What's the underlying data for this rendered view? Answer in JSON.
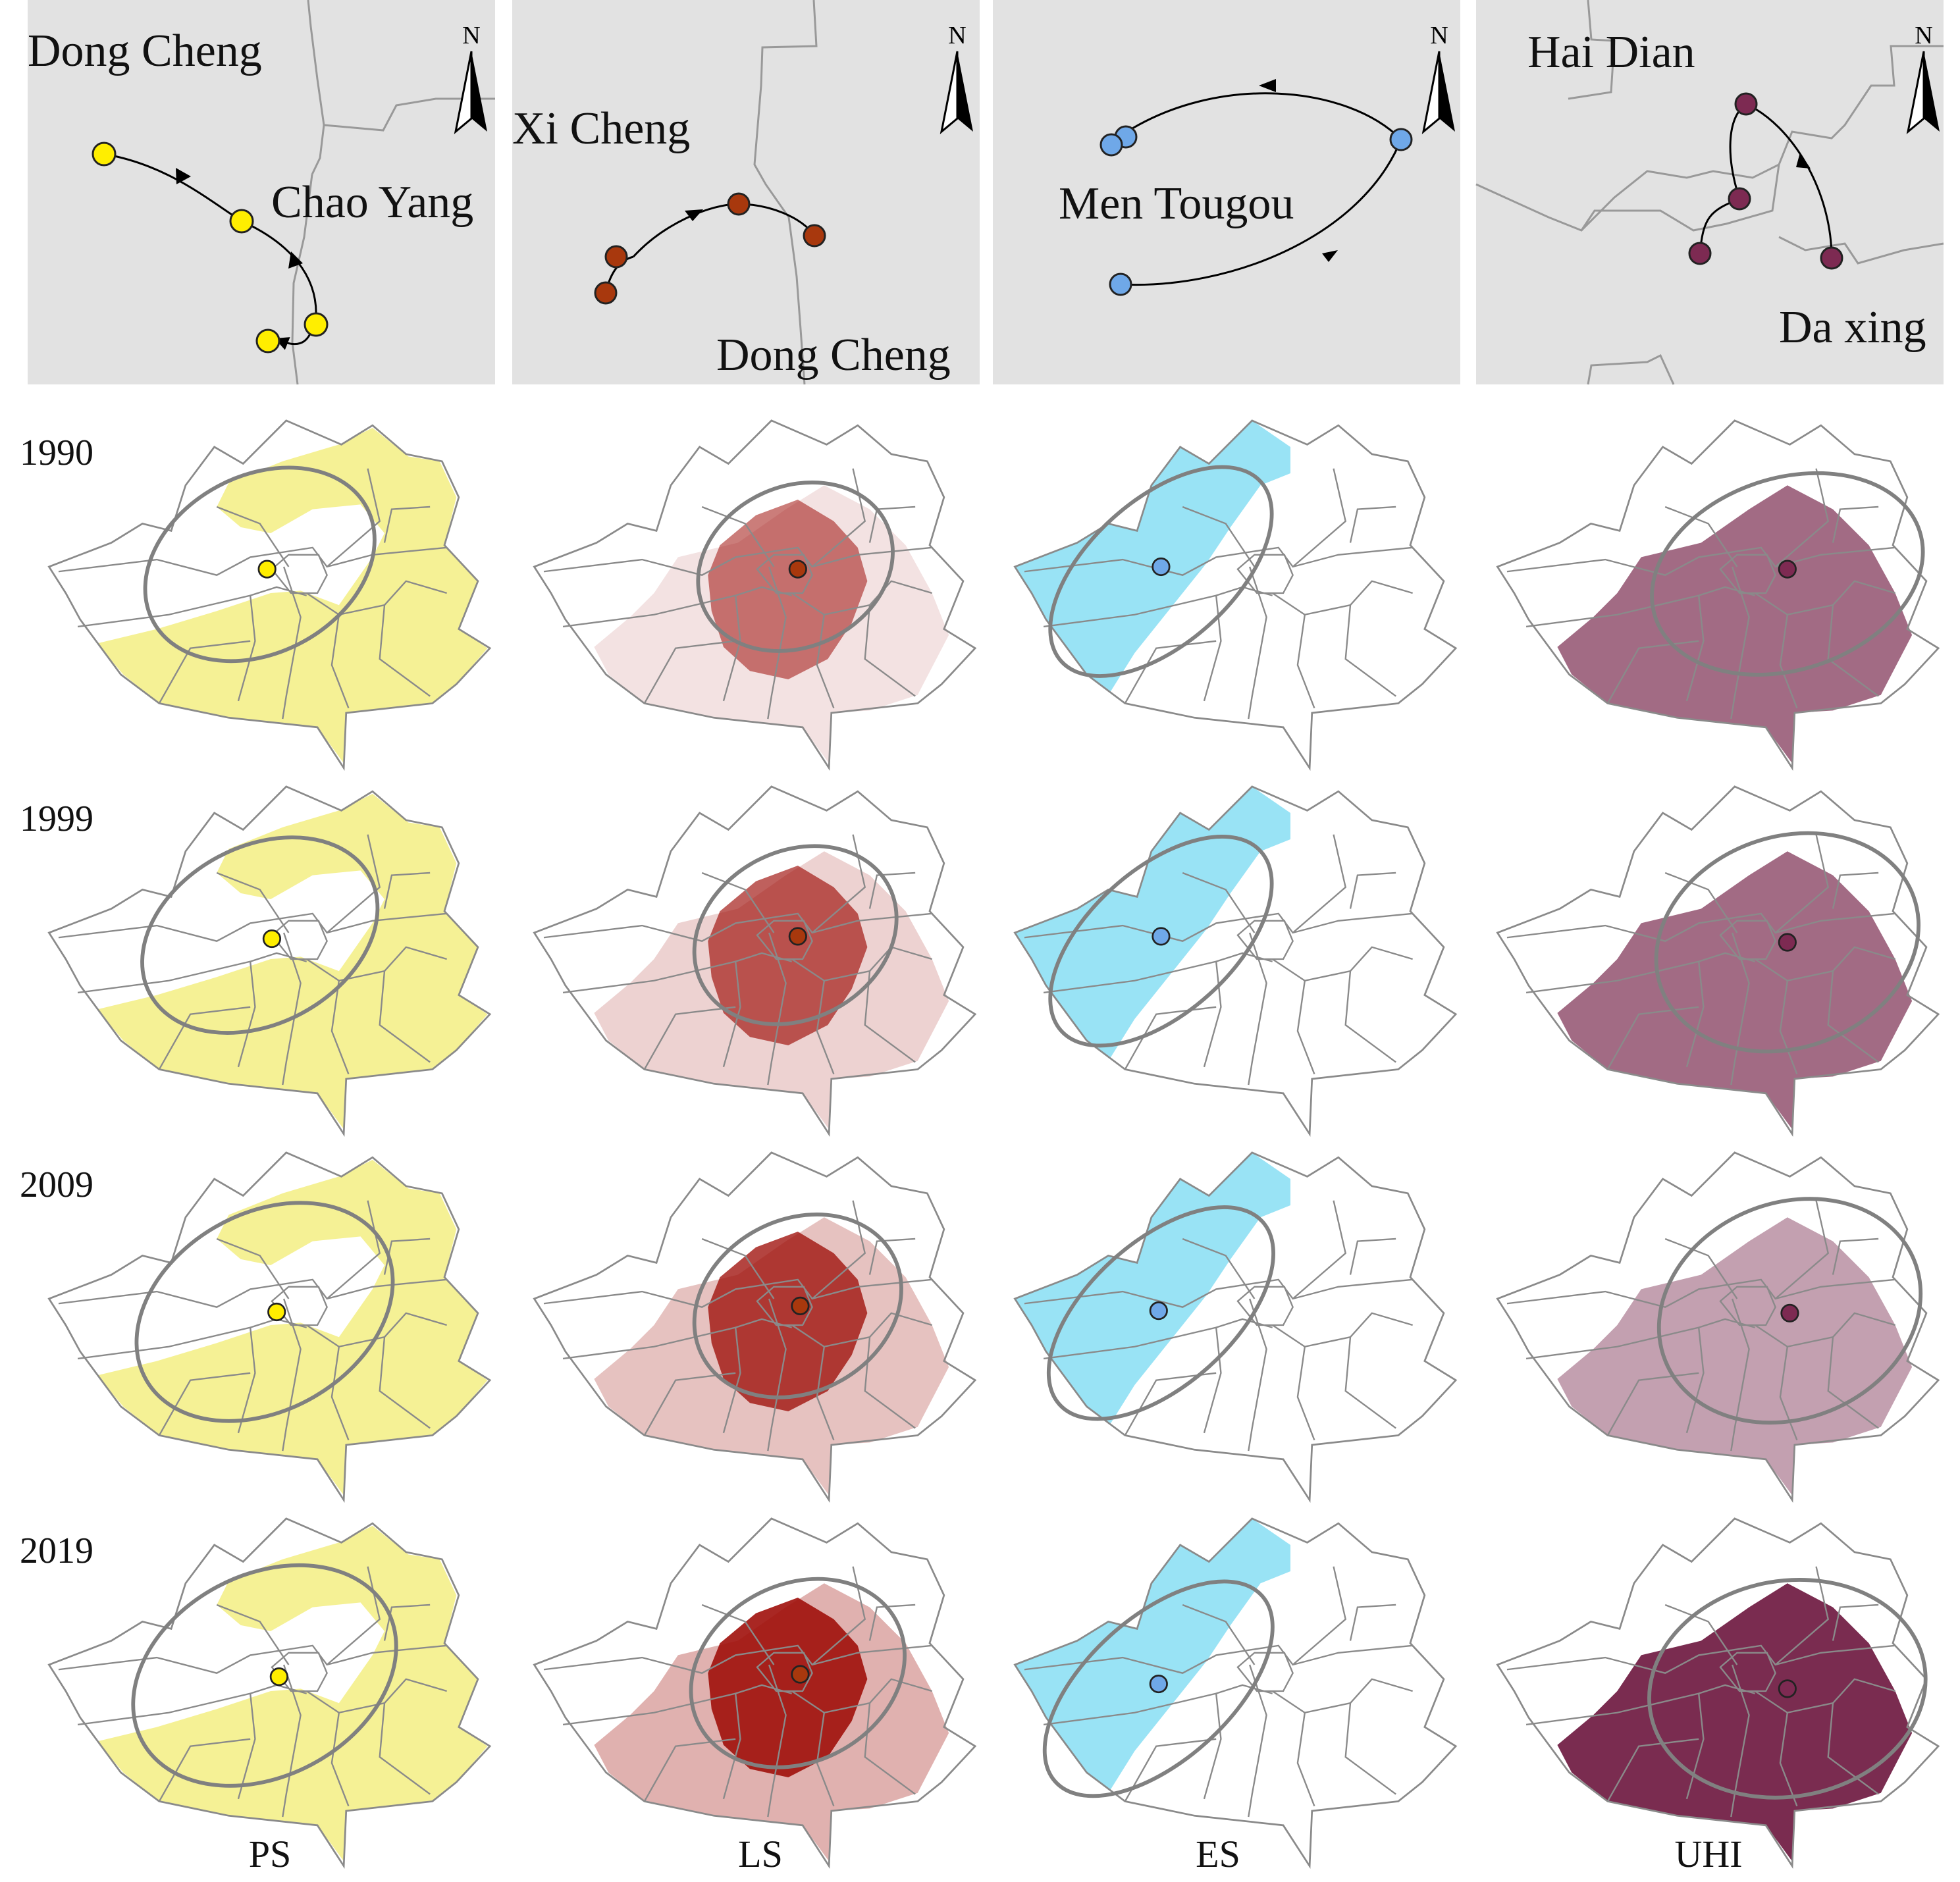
{
  "colors": {
    "inset_bg": "#e2e2e2",
    "boundary": "#8a8a8a",
    "ellipse": "#808080",
    "PS": "#f4f08a",
    "LS": "#a0120d",
    "ES": "#8ee0f4",
    "UHI": "#7a2c50",
    "PS_point": "#ffee00",
    "LS_point": "#a8380d",
    "ES_point": "#6fa8e8",
    "UHI_point": "#7d2a52"
  },
  "years": [
    "1990",
    "1999",
    "2009",
    "2019"
  ],
  "columns": [
    {
      "key": "PS",
      "label": "PS",
      "inset": {
        "place_labels": [
          "Dong Cheng",
          "Chao Yang"
        ],
        "north_label": "N",
        "centroid_years": [
          "1990",
          "1999",
          "2009",
          "2019"
        ]
      }
    },
    {
      "key": "LS",
      "label": "LS",
      "inset": {
        "place_labels": [
          "Xi Cheng",
          "Dong Cheng"
        ],
        "north_label": "N",
        "centroid_years": [
          "1990",
          "1999",
          "2009",
          "2019"
        ]
      }
    },
    {
      "key": "ES",
      "label": "ES",
      "inset": {
        "place_labels": [
          "Men Tougou"
        ],
        "north_label": "N",
        "centroid_years": [
          "1990",
          "1999",
          "2009",
          "2019"
        ]
      }
    },
    {
      "key": "UHI",
      "label": "UHI",
      "inset": {
        "place_labels": [
          "Hai Dian",
          "Da xing"
        ],
        "north_label": "N",
        "centroid_years": [
          "1990",
          "1999",
          "2009",
          "2019"
        ]
      }
    }
  ]
}
